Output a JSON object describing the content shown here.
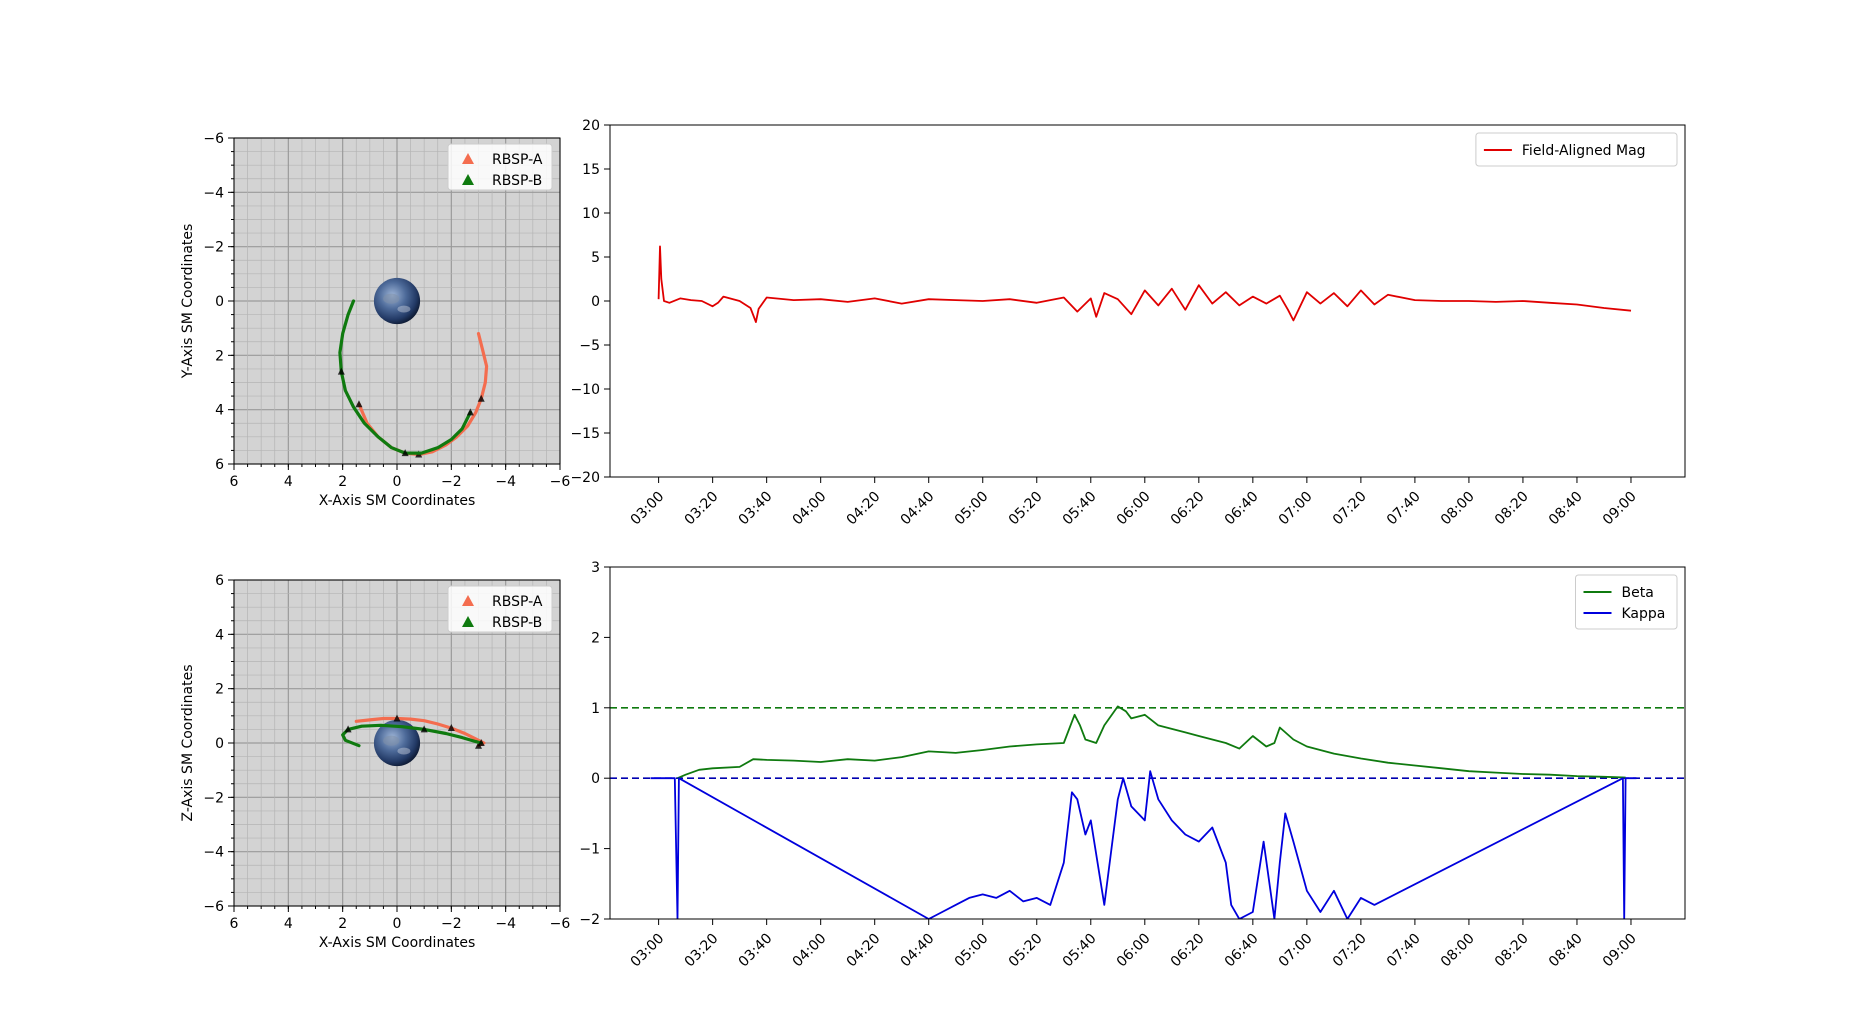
{
  "chart_data": [
    {
      "type": "scatter",
      "panel": "orbit-xy",
      "xlabel": "X-Axis SM Coordinates",
      "ylabel": "Y-Axis SM Coordinates",
      "xlim": [
        6,
        -6
      ],
      "ylim": [
        -6,
        6
      ],
      "y_inverted": true,
      "xticks": [
        6,
        4,
        2,
        0,
        -2,
        -4,
        -6
      ],
      "yticks": [
        -6,
        -4,
        -2,
        0,
        2,
        4,
        6
      ],
      "grid": true,
      "background": "#d3d3d3",
      "legend": "top-right",
      "earth": {
        "x": 0,
        "y": 0,
        "radius": 0.85
      },
      "series": [
        {
          "name": "RBSP-A",
          "color": "#f46d4f",
          "x": [
            -3.0,
            -3.15,
            -3.3,
            -3.25,
            -3.1,
            -2.9,
            -2.6,
            -2.2,
            -1.8,
            -1.3,
            -0.8,
            -0.3,
            0.2,
            0.7,
            1.1,
            1.4
          ],
          "y": [
            1.2,
            1.8,
            2.4,
            3.0,
            3.6,
            4.1,
            4.6,
            5.0,
            5.3,
            5.55,
            5.65,
            5.6,
            5.4,
            5.0,
            4.5,
            3.8
          ]
        },
        {
          "name": "RBSP-B",
          "color": "#0f7a0f",
          "x": [
            1.6,
            1.8,
            2.0,
            2.1,
            2.05,
            1.9,
            1.6,
            1.2,
            0.7,
            0.2,
            -0.3,
            -0.9,
            -1.5,
            -2.0,
            -2.4,
            -2.7
          ],
          "y": [
            0.0,
            0.5,
            1.2,
            1.9,
            2.6,
            3.3,
            3.9,
            4.5,
            5.0,
            5.4,
            5.6,
            5.6,
            5.4,
            5.1,
            4.7,
            4.1
          ]
        }
      ]
    },
    {
      "type": "line",
      "panel": "field-aligned",
      "xlabel": "",
      "ylabel": "",
      "xticks": [
        "03:00",
        "03:20",
        "03:40",
        "04:00",
        "04:20",
        "04:40",
        "05:00",
        "05:20",
        "05:40",
        "06:00",
        "06:20",
        "06:40",
        "07:00",
        "07:20",
        "07:40",
        "08:00",
        "08:20",
        "08:40",
        "09:00"
      ],
      "xlim_minutes": [
        -18,
        380
      ],
      "ylim": [
        -20,
        20
      ],
      "yticks": [
        20,
        15,
        10,
        5,
        0,
        -5,
        -10,
        -15,
        -20
      ],
      "legend": "top-right",
      "series": [
        {
          "name": "Field-Aligned Mag",
          "color": "#e00000",
          "x": [
            0,
            0.5,
            1,
            2,
            4,
            8,
            12,
            16,
            20,
            22,
            24,
            30,
            34,
            36,
            37,
            40,
            50,
            60,
            70,
            80,
            90,
            100,
            110,
            120,
            130,
            140,
            150,
            155,
            160,
            162,
            165,
            170,
            175,
            180,
            185,
            190,
            195,
            200,
            205,
            210,
            215,
            220,
            225,
            230,
            233,
            235,
            240,
            245,
            250,
            255,
            260,
            265,
            270,
            280,
            290,
            300,
            310,
            320,
            330,
            340,
            350,
            360
          ],
          "y": [
            0.2,
            6.2,
            2.5,
            0.0,
            -0.2,
            0.3,
            0.1,
            0.0,
            -0.6,
            -0.2,
            0.5,
            0.0,
            -0.8,
            -2.4,
            -0.9,
            0.4,
            0.1,
            0.2,
            -0.1,
            0.3,
            -0.3,
            0.2,
            0.1,
            0.0,
            0.2,
            -0.2,
            0.4,
            -1.2,
            0.3,
            -1.8,
            0.9,
            0.2,
            -1.5,
            1.2,
            -0.5,
            1.4,
            -1.0,
            1.8,
            -0.3,
            1.0,
            -0.5,
            0.5,
            -0.3,
            0.6,
            -1.0,
            -2.2,
            1.0,
            -0.3,
            0.9,
            -0.6,
            1.2,
            -0.4,
            0.7,
            0.1,
            0.0,
            0.0,
            -0.1,
            0.0,
            -0.2,
            -0.4,
            -0.8,
            -1.1
          ]
        }
      ]
    },
    {
      "type": "scatter",
      "panel": "orbit-xz",
      "xlabel": "X-Axis SM Coordinates",
      "ylabel": "Z-Axis SM Coordinates",
      "xlim": [
        6,
        -6
      ],
      "ylim": [
        -6,
        6
      ],
      "xticks": [
        6,
        4,
        2,
        0,
        -2,
        -4,
        -6
      ],
      "yticks": [
        6,
        4,
        2,
        0,
        -2,
        -4,
        -6
      ],
      "grid": true,
      "background": "#d3d3d3",
      "legend": "top-right",
      "earth": {
        "x": 0,
        "y": 0,
        "radius": 0.85
      },
      "series": [
        {
          "name": "RBSP-A",
          "color": "#f46d4f",
          "x": [
            1.5,
            1.0,
            0.5,
            0.0,
            -0.5,
            -1.0,
            -1.5,
            -2.0,
            -2.5,
            -2.9,
            -3.2,
            -3.0
          ],
          "y": [
            0.8,
            0.85,
            0.9,
            0.9,
            0.88,
            0.82,
            0.7,
            0.55,
            0.35,
            0.15,
            0.0,
            -0.1
          ]
        },
        {
          "name": "RBSP-B",
          "color": "#0f7a0f",
          "x": [
            1.4,
            1.9,
            2.0,
            1.8,
            1.3,
            0.6,
            -0.2,
            -1.0,
            -1.8,
            -2.4,
            -2.9,
            -3.1
          ],
          "y": [
            -0.1,
            0.1,
            0.3,
            0.5,
            0.62,
            0.65,
            0.6,
            0.5,
            0.35,
            0.2,
            0.05,
            0.0
          ]
        }
      ]
    },
    {
      "type": "line",
      "panel": "beta-kappa",
      "xlabel": "",
      "ylabel": "",
      "xticks": [
        "03:00",
        "03:20",
        "03:40",
        "04:00",
        "04:20",
        "04:40",
        "05:00",
        "05:20",
        "05:40",
        "06:00",
        "06:20",
        "06:40",
        "07:00",
        "07:20",
        "07:40",
        "08:00",
        "08:20",
        "08:40",
        "09:00"
      ],
      "xlim_minutes": [
        -18,
        380
      ],
      "ylim": [
        -2,
        3
      ],
      "yticks": [
        3,
        2,
        1,
        0,
        -1,
        -2
      ],
      "legend": "top-right",
      "hlines": [
        {
          "y": 1,
          "color": "#0f7a0f",
          "style": "dashed"
        },
        {
          "y": 0,
          "color": "#0000b0",
          "style": "dashed"
        }
      ],
      "series": [
        {
          "name": "Beta",
          "color": "#0f7a0f",
          "x": [
            7,
            10,
            15,
            20,
            30,
            35,
            40,
            50,
            60,
            70,
            80,
            90,
            100,
            110,
            120,
            130,
            140,
            150,
            154,
            156,
            158,
            162,
            165,
            170,
            173,
            175,
            180,
            185,
            190,
            195,
            200,
            210,
            215,
            220,
            225,
            228,
            230,
            235,
            240,
            250,
            260,
            270,
            280,
            290,
            300,
            310,
            320,
            330,
            340,
            350,
            358
          ],
          "y": [
            0.0,
            0.05,
            0.12,
            0.14,
            0.16,
            0.27,
            0.26,
            0.25,
            0.23,
            0.27,
            0.25,
            0.3,
            0.38,
            0.36,
            0.4,
            0.45,
            0.48,
            0.5,
            0.9,
            0.75,
            0.55,
            0.5,
            0.75,
            1.02,
            0.95,
            0.85,
            0.9,
            0.75,
            0.7,
            0.65,
            0.6,
            0.5,
            0.42,
            0.6,
            0.45,
            0.5,
            0.72,
            0.55,
            0.45,
            0.35,
            0.28,
            0.22,
            0.18,
            0.14,
            0.1,
            0.08,
            0.06,
            0.05,
            0.03,
            0.02,
            0.01
          ]
        },
        {
          "name": "Kappa",
          "color": "#0000dd",
          "x": [
            -3,
            6,
            7,
            7.5,
            100,
            105,
            110,
            115,
            120,
            125,
            130,
            135,
            140,
            145,
            150,
            153,
            155,
            158,
            160,
            165,
            170,
            172,
            175,
            180,
            182,
            185,
            190,
            195,
            200,
            205,
            210,
            212,
            215,
            220,
            224,
            228,
            230,
            232,
            235,
            240,
            245,
            250,
            255,
            260,
            265,
            357,
            357.5,
            358,
            362
          ],
          "y": [
            0,
            0,
            -2,
            0,
            -2,
            -1.9,
            -1.8,
            -1.7,
            -1.65,
            -1.7,
            -1.6,
            -1.75,
            -1.7,
            -1.8,
            -1.2,
            -0.2,
            -0.3,
            -0.8,
            -0.6,
            -1.8,
            -0.3,
            0.0,
            -0.4,
            -0.6,
            0.1,
            -0.3,
            -0.6,
            -0.8,
            -0.9,
            -0.7,
            -1.2,
            -1.8,
            -2.0,
            -1.9,
            -0.9,
            -2.0,
            -1.2,
            -0.5,
            -0.9,
            -1.6,
            -1.9,
            -1.6,
            -2.0,
            -1.7,
            -1.8,
            0,
            -2,
            0,
            0
          ]
        }
      ]
    }
  ]
}
